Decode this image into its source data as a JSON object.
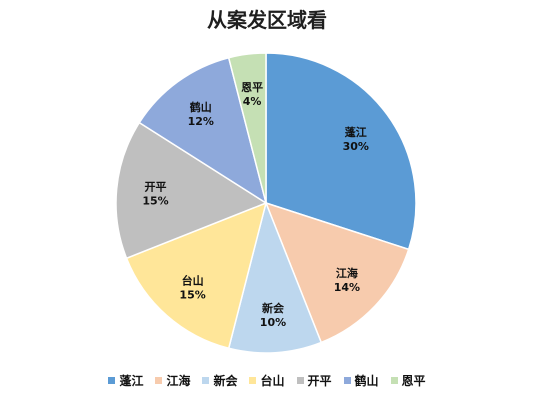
{
  "chart_data": {
    "type": "pie",
    "title": "从案发区域看",
    "categories": [
      "蓬江",
      "江海",
      "新会",
      "台山",
      "开平",
      "鹤山",
      "恩平"
    ],
    "values": [
      30,
      14,
      10,
      15,
      15,
      12,
      4
    ],
    "labels": [
      "30%",
      "14%",
      "10%",
      "15%",
      "15%",
      "12%",
      "4%"
    ],
    "colors": [
      "#5b9bd5",
      "#f7cbad",
      "#bdd7ee",
      "#ffe699",
      "#bfbfbf",
      "#8ea9db",
      "#c5e0b4"
    ],
    "legend_position": "bottom",
    "start_angle_deg": 0,
    "direction": "clockwise"
  }
}
